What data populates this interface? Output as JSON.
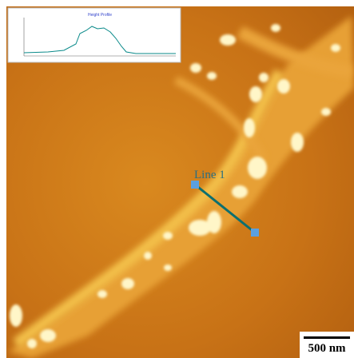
{
  "image": {
    "line_label": "Line 1",
    "scale_bar": "500 nm"
  },
  "inset": {
    "title": "Height Profile"
  }
}
